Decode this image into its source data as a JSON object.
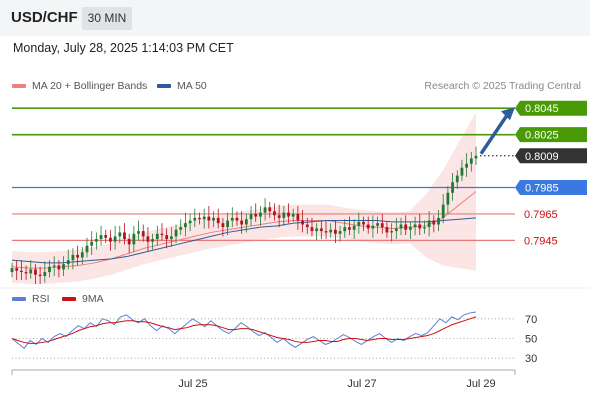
{
  "header": {
    "symbol": "USD/CHF",
    "timeframe": "30 MIN"
  },
  "datetime": "Monday, July 28, 2025 1:14:03 PM CET",
  "legend": {
    "ma20_label": "MA 20 + Bollinger Bands",
    "ma20_color": "#f08080",
    "ma50_label": "MA 50",
    "ma50_color": "#2f5c9a"
  },
  "credit": "Research © 2025 Trading Central",
  "rsi_legend": {
    "rsi_label": "RSI",
    "rsi_color": "#5b7fd6",
    "ma_label": "9MA",
    "ma_color": "#cc1111"
  },
  "colors": {
    "resistance": "#4a9a08",
    "pivot": "#3a7ae0",
    "support": "#e87a7a",
    "current": "#333333",
    "arrow": "#2f5c9a",
    "bull": "#1f7a33",
    "bear": "#b3121e"
  },
  "chart_data": {
    "type": "candlestick",
    "symbol": "USD/CHF",
    "timeframe": "30 MIN",
    "ylim": [
      0.7915,
      0.8055
    ],
    "levels": [
      {
        "value": 0.8045,
        "label": "0.8045",
        "kind": "resistance"
      },
      {
        "value": 0.8025,
        "label": "0.8025",
        "kind": "resistance"
      },
      {
        "value": 0.8009,
        "label": "0.8009",
        "kind": "current"
      },
      {
        "value": 0.7985,
        "label": "0.7985",
        "kind": "pivot"
      },
      {
        "value": 0.7965,
        "label": "0.7965",
        "kind": "support"
      },
      {
        "value": 0.7945,
        "label": "0.7945",
        "kind": "support"
      }
    ],
    "x_ticks": [
      "Jul 25",
      "Jul 27",
      "Jul 29"
    ],
    "close_path": [
      0.7924,
      0.7922,
      0.7921,
      0.792,
      0.7923,
      0.7919,
      0.7918,
      0.7921,
      0.7925,
      0.7926,
      0.7923,
      0.7927,
      0.793,
      0.7934,
      0.7932,
      0.7936,
      0.7941,
      0.7944,
      0.7946,
      0.7949,
      0.7947,
      0.7944,
      0.7948,
      0.7951,
      0.7946,
      0.7942,
      0.795,
      0.7952,
      0.7948,
      0.7944,
      0.7946,
      0.795,
      0.7949,
      0.7946,
      0.7948,
      0.7953,
      0.7955,
      0.7958,
      0.796,
      0.7962,
      0.7961,
      0.7963,
      0.796,
      0.7962,
      0.7958,
      0.7955,
      0.796,
      0.7962,
      0.796,
      0.7957,
      0.7961,
      0.7965,
      0.7963,
      0.7966,
      0.797,
      0.7967,
      0.7964,
      0.7962,
      0.7966,
      0.7963,
      0.7965,
      0.796,
      0.7957,
      0.7955,
      0.7952,
      0.7954,
      0.7952,
      0.7951,
      0.7953,
      0.795,
      0.7952,
      0.7955,
      0.7953,
      0.7956,
      0.7959,
      0.7957,
      0.7954,
      0.7956,
      0.7958,
      0.7955,
      0.7951,
      0.7952,
      0.7954,
      0.7957,
      0.7953,
      0.7955,
      0.7957,
      0.7954,
      0.7955,
      0.796,
      0.7957,
      0.7962,
      0.7972,
      0.7981,
      0.7989,
      0.7994,
      0.8,
      0.8003,
      0.8007,
      0.8009
    ],
    "ma20": [
      0.7925,
      0.7924,
      0.7924,
      0.7925,
      0.7926,
      0.7928,
      0.7931,
      0.7935,
      0.7939,
      0.7942,
      0.7945,
      0.7948,
      0.7951,
      0.7953,
      0.7955,
      0.7957,
      0.7959,
      0.796,
      0.796,
      0.796,
      0.7958,
      0.7956,
      0.7955,
      0.7954,
      0.7955,
      0.7956,
      0.7962,
      0.7972,
      0.7982
    ],
    "ma50": [
      0.793,
      0.7929,
      0.7928,
      0.7928,
      0.7929,
      0.793,
      0.7931,
      0.7933,
      0.7936,
      0.7939,
      0.7942,
      0.7945,
      0.7948,
      0.7951,
      0.7953,
      0.7955,
      0.7956,
      0.7958,
      0.7959,
      0.796,
      0.796,
      0.796,
      0.796,
      0.7959,
      0.7959,
      0.7959,
      0.796,
      0.7961,
      0.7962
    ],
    "rsi": {
      "levels": [
        70,
        50,
        30
      ],
      "ylim": [
        20,
        80
      ],
      "rsi_values": [
        50,
        45,
        40,
        48,
        44,
        50,
        46,
        52,
        55,
        52,
        58,
        63,
        60,
        66,
        62,
        70,
        68,
        64,
        72,
        74,
        69,
        66,
        70,
        63,
        58,
        63,
        60,
        55,
        60,
        65,
        70,
        66,
        62,
        68,
        63,
        58,
        55,
        60,
        66,
        62,
        57,
        53,
        56,
        51,
        46,
        50,
        45,
        41,
        45,
        49,
        52,
        48,
        44,
        46,
        50,
        54,
        51,
        47,
        44,
        48,
        52,
        55,
        50,
        46,
        50,
        48,
        52,
        55,
        53,
        56,
        63,
        70,
        66,
        72,
        69,
        74,
        76,
        77
      ],
      "ma9_values": [
        50,
        48,
        46,
        45,
        45,
        46,
        47,
        49,
        51,
        53,
        55,
        58,
        60,
        62,
        63,
        65,
        66,
        66,
        67,
        68,
        68,
        67,
        67,
        66,
        64,
        62,
        61,
        59,
        60,
        61,
        63,
        64,
        64,
        64,
        63,
        61,
        59,
        59,
        60,
        60,
        59,
        57,
        55,
        53,
        51,
        50,
        49,
        47,
        46,
        46,
        47,
        48,
        48,
        47,
        47,
        49,
        50,
        50,
        49,
        48,
        49,
        50,
        50,
        49,
        49,
        49,
        50,
        51,
        52,
        53,
        55,
        58,
        61,
        64,
        66,
        68,
        70,
        72
      ]
    }
  }
}
